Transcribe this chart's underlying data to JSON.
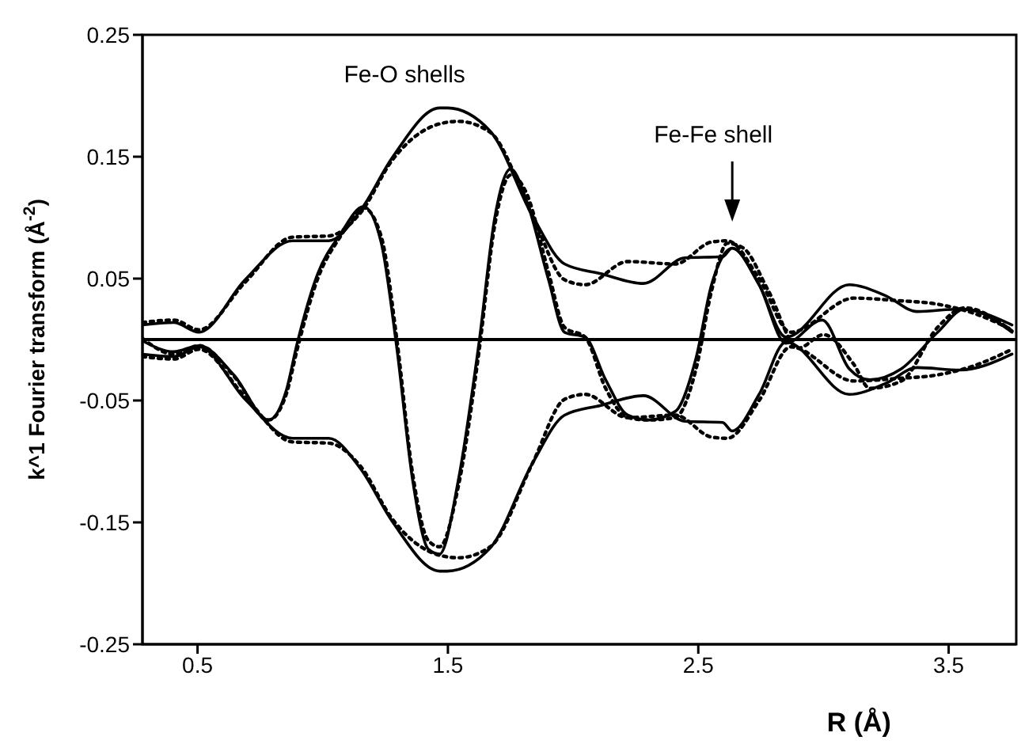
{
  "chart_data": {
    "type": "line",
    "xlabel": "R (Å)",
    "ylabel": "k^1 Fourier transform (Å$^{-2}$)",
    "xlim": [
      0.28,
      3.77
    ],
    "xticks": [
      0.5,
      1.5,
      2.5,
      3.5
    ],
    "ylim": [
      -0.25,
      0.25
    ],
    "yticks": [
      -0.25,
      -0.15,
      -0.05,
      0.05,
      0.15,
      0.25
    ],
    "grid": false,
    "marker": "none",
    "annotations": [
      "Fe-O shells",
      "Fe-Fe shell"
    ],
    "ref_lines": [
      {
        "axis": "y",
        "value": 0,
        "color": "#000000"
      }
    ],
    "series": [
      {
        "color": "#000000",
        "line_style": "solid",
        "x": [
          0.28,
          0.405,
          0.506,
          0.69,
          0.879,
          1.024,
          1.151,
          1.277,
          1.467,
          1.498,
          1.669,
          1.839,
          1.966,
          2.111,
          2.281,
          2.446,
          2.597,
          2.635,
          2.743,
          2.85,
          3.103,
          3.248,
          3.374,
          3.545,
          3.753
        ],
        "values": [
          0.012,
          0.014,
          0.006,
          0.049,
          0.081,
          0.081,
          0.106,
          0.149,
          0.19,
          0.19,
          0.171,
          0.101,
          0.062,
          0.054,
          0.046,
          0.067,
          0.068,
          0.075,
          0.045,
          0.002,
          0.045,
          0.036,
          0.023,
          0.025,
          0.012
        ]
      },
      {
        "color": "#000000",
        "line_style": "solid",
        "x": [
          0.28,
          0.405,
          0.506,
          0.69,
          0.879,
          1.024,
          1.151,
          1.277,
          1.467,
          1.498,
          1.669,
          1.839,
          1.966,
          2.111,
          2.281,
          2.446,
          2.597,
          2.635,
          2.743,
          2.85,
          3.103,
          3.248,
          3.374,
          3.545,
          3.753
        ],
        "values": [
          -0.012,
          -0.014,
          -0.006,
          -0.049,
          -0.081,
          -0.081,
          -0.106,
          -0.149,
          -0.19,
          -0.19,
          -0.171,
          -0.101,
          -0.062,
          -0.054,
          -0.046,
          -0.067,
          -0.068,
          -0.075,
          -0.045,
          -0.002,
          -0.045,
          -0.036,
          -0.023,
          -0.025,
          -0.012
        ]
      },
      {
        "color": "#000000",
        "line_style": "dotted",
        "x": [
          0.28,
          0.405,
          0.506,
          0.69,
          0.879,
          1.024,
          1.151,
          1.277,
          1.467,
          1.542,
          1.669,
          1.839,
          1.966,
          2.048,
          2.218,
          2.408,
          2.553,
          2.616,
          2.743,
          2.869,
          3.122,
          3.292,
          3.456,
          3.608,
          3.753
        ],
        "values": [
          0.014,
          0.016,
          0.008,
          0.047,
          0.084,
          0.085,
          0.104,
          0.147,
          0.177,
          0.179,
          0.17,
          0.101,
          0.049,
          0.045,
          0.064,
          0.062,
          0.08,
          0.081,
          0.05,
          0.006,
          0.034,
          0.032,
          0.029,
          0.021,
          0.008
        ]
      },
      {
        "color": "#000000",
        "line_style": "dotted",
        "x": [
          0.28,
          0.405,
          0.506,
          0.69,
          0.879,
          1.024,
          1.151,
          1.277,
          1.467,
          1.542,
          1.669,
          1.839,
          1.966,
          2.048,
          2.218,
          2.408,
          2.553,
          2.616,
          2.743,
          2.869,
          3.122,
          3.292,
          3.456,
          3.608,
          3.753
        ],
        "values": [
          -0.014,
          -0.016,
          -0.008,
          -0.047,
          -0.084,
          -0.085,
          -0.104,
          -0.147,
          -0.177,
          -0.179,
          -0.17,
          -0.101,
          -0.049,
          -0.045,
          -0.064,
          -0.062,
          -0.08,
          -0.081,
          -0.05,
          -0.006,
          -0.034,
          -0.032,
          -0.029,
          -0.021,
          -0.008
        ]
      },
      {
        "color": "#000000",
        "line_style": "solid",
        "x": [
          0.28,
          0.405,
          0.506,
          0.645,
          0.784,
          0.854,
          0.898,
          0.98,
          1.069,
          1.163,
          1.233,
          1.296,
          1.359,
          1.422,
          1.467,
          1.542,
          1.624,
          1.688,
          1.751,
          1.814,
          1.902,
          1.966,
          2.048,
          2.13,
          2.218,
          2.3,
          2.408,
          2.49,
          2.553,
          2.616,
          2.635,
          2.743,
          2.85,
          2.995,
          3.103,
          3.185,
          3.311,
          3.456,
          3.564,
          3.753
        ],
        "values": [
          -0.001,
          -0.01,
          -0.005,
          -0.029,
          -0.066,
          -0.042,
          -0.003,
          0.054,
          0.086,
          0.109,
          0.08,
          -0.007,
          -0.115,
          -0.172,
          -0.176,
          -0.115,
          -0.003,
          0.101,
          0.14,
          0.114,
          0.049,
          0.006,
          0.002,
          -0.033,
          -0.062,
          -0.066,
          -0.059,
          -0.016,
          0.045,
          0.073,
          0.075,
          0.045,
          -0.003,
          0.016,
          -0.024,
          -0.033,
          -0.024,
          0.006,
          0.025,
          0.006
        ]
      },
      {
        "color": "#000000",
        "line_style": "dotted",
        "x": [
          0.28,
          0.405,
          0.506,
          0.645,
          0.784,
          0.854,
          0.898,
          0.98,
          1.069,
          1.163,
          1.233,
          1.296,
          1.359,
          1.422,
          1.467,
          1.542,
          1.624,
          1.688,
          1.751,
          1.814,
          1.902,
          1.966,
          2.048,
          2.13,
          2.218,
          2.3,
          2.408,
          2.49,
          2.553,
          2.616,
          2.68,
          2.78,
          2.9,
          3.0,
          3.12,
          3.185,
          3.311,
          3.456,
          3.564,
          3.753
        ],
        "values": [
          0.001,
          -0.012,
          -0.005,
          -0.03,
          -0.066,
          -0.045,
          -0.008,
          0.05,
          0.084,
          0.108,
          0.085,
          0.0,
          -0.11,
          -0.165,
          -0.17,
          -0.12,
          -0.01,
          0.095,
          0.135,
          0.12,
          0.055,
          0.01,
          0.002,
          -0.04,
          -0.064,
          -0.066,
          -0.064,
          -0.025,
          0.04,
          0.079,
          0.075,
          0.04,
          -0.007,
          0.004,
          -0.02,
          -0.04,
          -0.034,
          0.01,
          0.026,
          0.007
        ]
      }
    ]
  }
}
